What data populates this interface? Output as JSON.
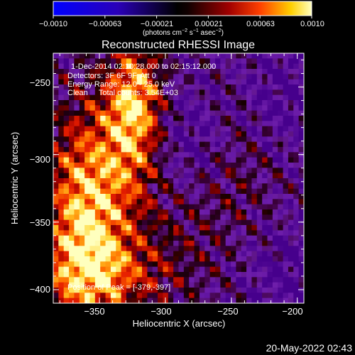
{
  "chart_data": {
    "type": "heatmap",
    "title": "Reconstructed RHESSI Image",
    "xlabel": "Heliocentric X (arcsec)",
    "ylabel": "Heliocentric Y (arcsec)",
    "xlim": [
      -385,
      -195
    ],
    "ylim": [
      -410,
      -225
    ],
    "x_ticks": [
      -350,
      -300,
      -250,
      -200
    ],
    "y_ticks": [
      -250,
      -300,
      -350,
      -400
    ],
    "x_tick_labels": [
      "−350",
      "−300",
      "−250",
      "−200"
    ],
    "y_tick_labels": [
      "−250",
      "−300",
      "−350",
      "−400"
    ],
    "colorbar": {
      "range": [
        -0.001,
        0.001
      ],
      "tick_labels": [
        "−0.0010",
        "−0.00063",
        "−0.00021",
        "0.00021",
        "0.00063",
        "0.0010"
      ],
      "unit_parts": [
        "(photons cm",
        "−2",
        " s",
        "−1",
        " asec",
        "−2",
        ")"
      ]
    },
    "annotations": [
      "1-Dec-2014 02:10:28.000 to 02:15:12.000",
      "Detectors: 3F 6F 9F, Att 0",
      "Energy Range: 12.0 - 25.0 keV",
      "Clean     Total counts: 3.54E+03"
    ],
    "peak_label": "Position of Peak = [-379,-397]",
    "peak": [
      -379,
      -397
    ]
  },
  "footer": {
    "timestamp": "20-May-2022 02:43"
  }
}
